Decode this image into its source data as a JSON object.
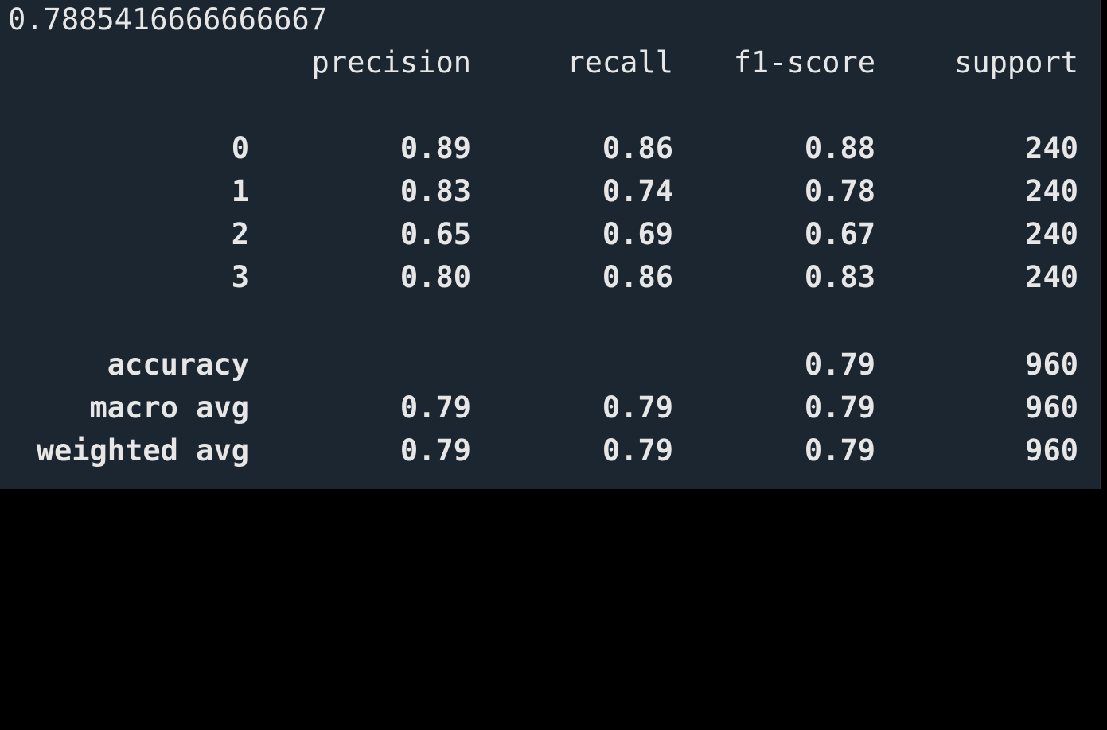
{
  "score": "0.7885416666666667",
  "headers": {
    "precision": "precision",
    "recall": "recall",
    "f1": "f1-score",
    "support": "support"
  },
  "class_rows": [
    {
      "label": "0",
      "precision": "0.89",
      "recall": "0.86",
      "f1": "0.88",
      "support": "240"
    },
    {
      "label": "1",
      "precision": "0.83",
      "recall": "0.74",
      "f1": "0.78",
      "support": "240"
    },
    {
      "label": "2",
      "precision": "0.65",
      "recall": "0.69",
      "f1": "0.67",
      "support": "240"
    },
    {
      "label": "3",
      "precision": "0.80",
      "recall": "0.86",
      "f1": "0.83",
      "support": "240"
    }
  ],
  "summary_rows": [
    {
      "label": "accuracy",
      "precision": "",
      "recall": "",
      "f1": "0.79",
      "support": "960"
    },
    {
      "label": "macro avg",
      "precision": "0.79",
      "recall": "0.79",
      "f1": "0.79",
      "support": "960"
    },
    {
      "label": "weighted avg",
      "precision": "0.79",
      "recall": "0.79",
      "f1": "0.79",
      "support": "960"
    }
  ],
  "colors": {
    "background": "#1c2630",
    "text": "#e6e6e6"
  }
}
